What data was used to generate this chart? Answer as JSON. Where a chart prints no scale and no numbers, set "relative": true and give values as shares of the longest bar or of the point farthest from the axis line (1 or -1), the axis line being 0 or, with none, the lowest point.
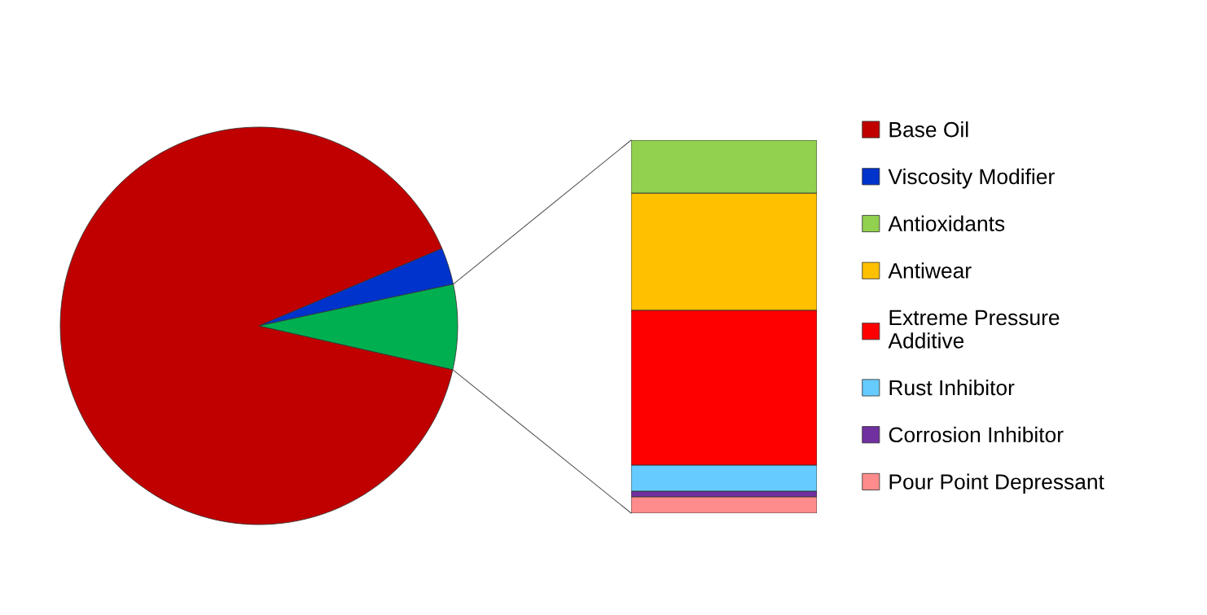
{
  "chart_data": [
    {
      "type": "pie",
      "categories": [
        "Base Oil",
        "Viscosity Modifier",
        null
      ],
      "values": [
        90.1,
        3.0,
        6.9
      ],
      "colors": [
        "#c00000",
        "#0033cc",
        "#00b050"
      ],
      "legend": "right"
    },
    {
      "type": "bar",
      "stacked": true,
      "relative": true,
      "categories": [
        null
      ],
      "legend": "right",
      "series": [
        {
          "name": "Pour Point Depressant",
          "color": "#ff8c8c",
          "values": [
            0.044
          ]
        },
        {
          "name": "Corrosion Inhibitor",
          "color": "#7030a0",
          "values": [
            0.015
          ]
        },
        {
          "name": "Rust Inhibitor",
          "color": "#66ccff",
          "values": [
            0.07
          ]
        },
        {
          "name": "Extreme Pressure\nAdditive",
          "color": "#ff0000",
          "values": [
            0.415
          ]
        },
        {
          "name": "Antiwear",
          "color": "#ffc000",
          "values": [
            0.314
          ]
        },
        {
          "name": "Antioxidants",
          "color": "#92d050",
          "values": [
            0.142
          ]
        }
      ]
    }
  ]
}
